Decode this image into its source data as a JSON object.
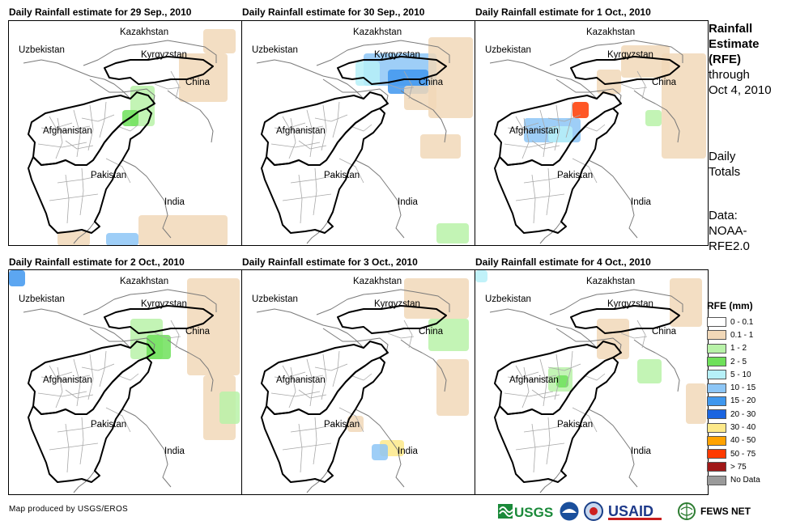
{
  "panels": [
    {
      "title": "Daily Rainfall estimate for 29 Sep., 2010"
    },
    {
      "title": "Daily Rainfall estimate for 30 Sep., 2010"
    },
    {
      "title": "Daily Rainfall estimate for 1 Oct., 2010"
    },
    {
      "title": "Daily Rainfall estimate for 2 Oct., 2010"
    },
    {
      "title": "Daily Rainfall estimate for 3 Oct., 2010"
    },
    {
      "title": "Daily Rainfall estimate for 4 Oct., 2010"
    }
  ],
  "country_labels": {
    "kazakhstan": "Kazakhstan",
    "uzbekistan": "Uzbekistan",
    "kyrgyzstan": "Kyrgyzstan",
    "china": "China",
    "afghanistan": "Afghanistan",
    "pakistan": "Pakistan",
    "india": "India"
  },
  "sidebar": {
    "title_line1": "Rainfall",
    "title_line2": "Estimate",
    "title_line3": "(RFE)",
    "through": "through",
    "date": "Oct 4, 2010",
    "daily": "Daily",
    "totals": "Totals",
    "data_label": "Data:",
    "data_source1": "NOAA-",
    "data_source2": "RFE2.0"
  },
  "legend": {
    "title": "RFE (mm)",
    "items": [
      {
        "label": "0 - 0.1",
        "color": "#ffffff"
      },
      {
        "label": "0.1 - 1",
        "color": "#f1d8b8"
      },
      {
        "label": "1 - 2",
        "color": "#b8f2a8"
      },
      {
        "label": "2 - 5",
        "color": "#6fe05a"
      },
      {
        "label": "5 - 10",
        "color": "#b6f0f8"
      },
      {
        "label": "10 - 15",
        "color": "#8dc6f6"
      },
      {
        "label": "15 - 20",
        "color": "#3f97ee"
      },
      {
        "label": "20 - 30",
        "color": "#1a64e0"
      },
      {
        "label": "30 - 40",
        "color": "#fde98a"
      },
      {
        "label": "40 - 50",
        "color": "#ffa200"
      },
      {
        "label": "50 - 75",
        "color": "#ff3a00"
      },
      {
        "label": "> 75",
        "color": "#a01818"
      },
      {
        "label": "No Data",
        "color": "#9a9a9a"
      }
    ]
  },
  "credit": "Map produced by USGS/EROS",
  "logos": {
    "usgs": "USGS",
    "usaid": "USAID",
    "fewsnet": "FEWS NET"
  }
}
